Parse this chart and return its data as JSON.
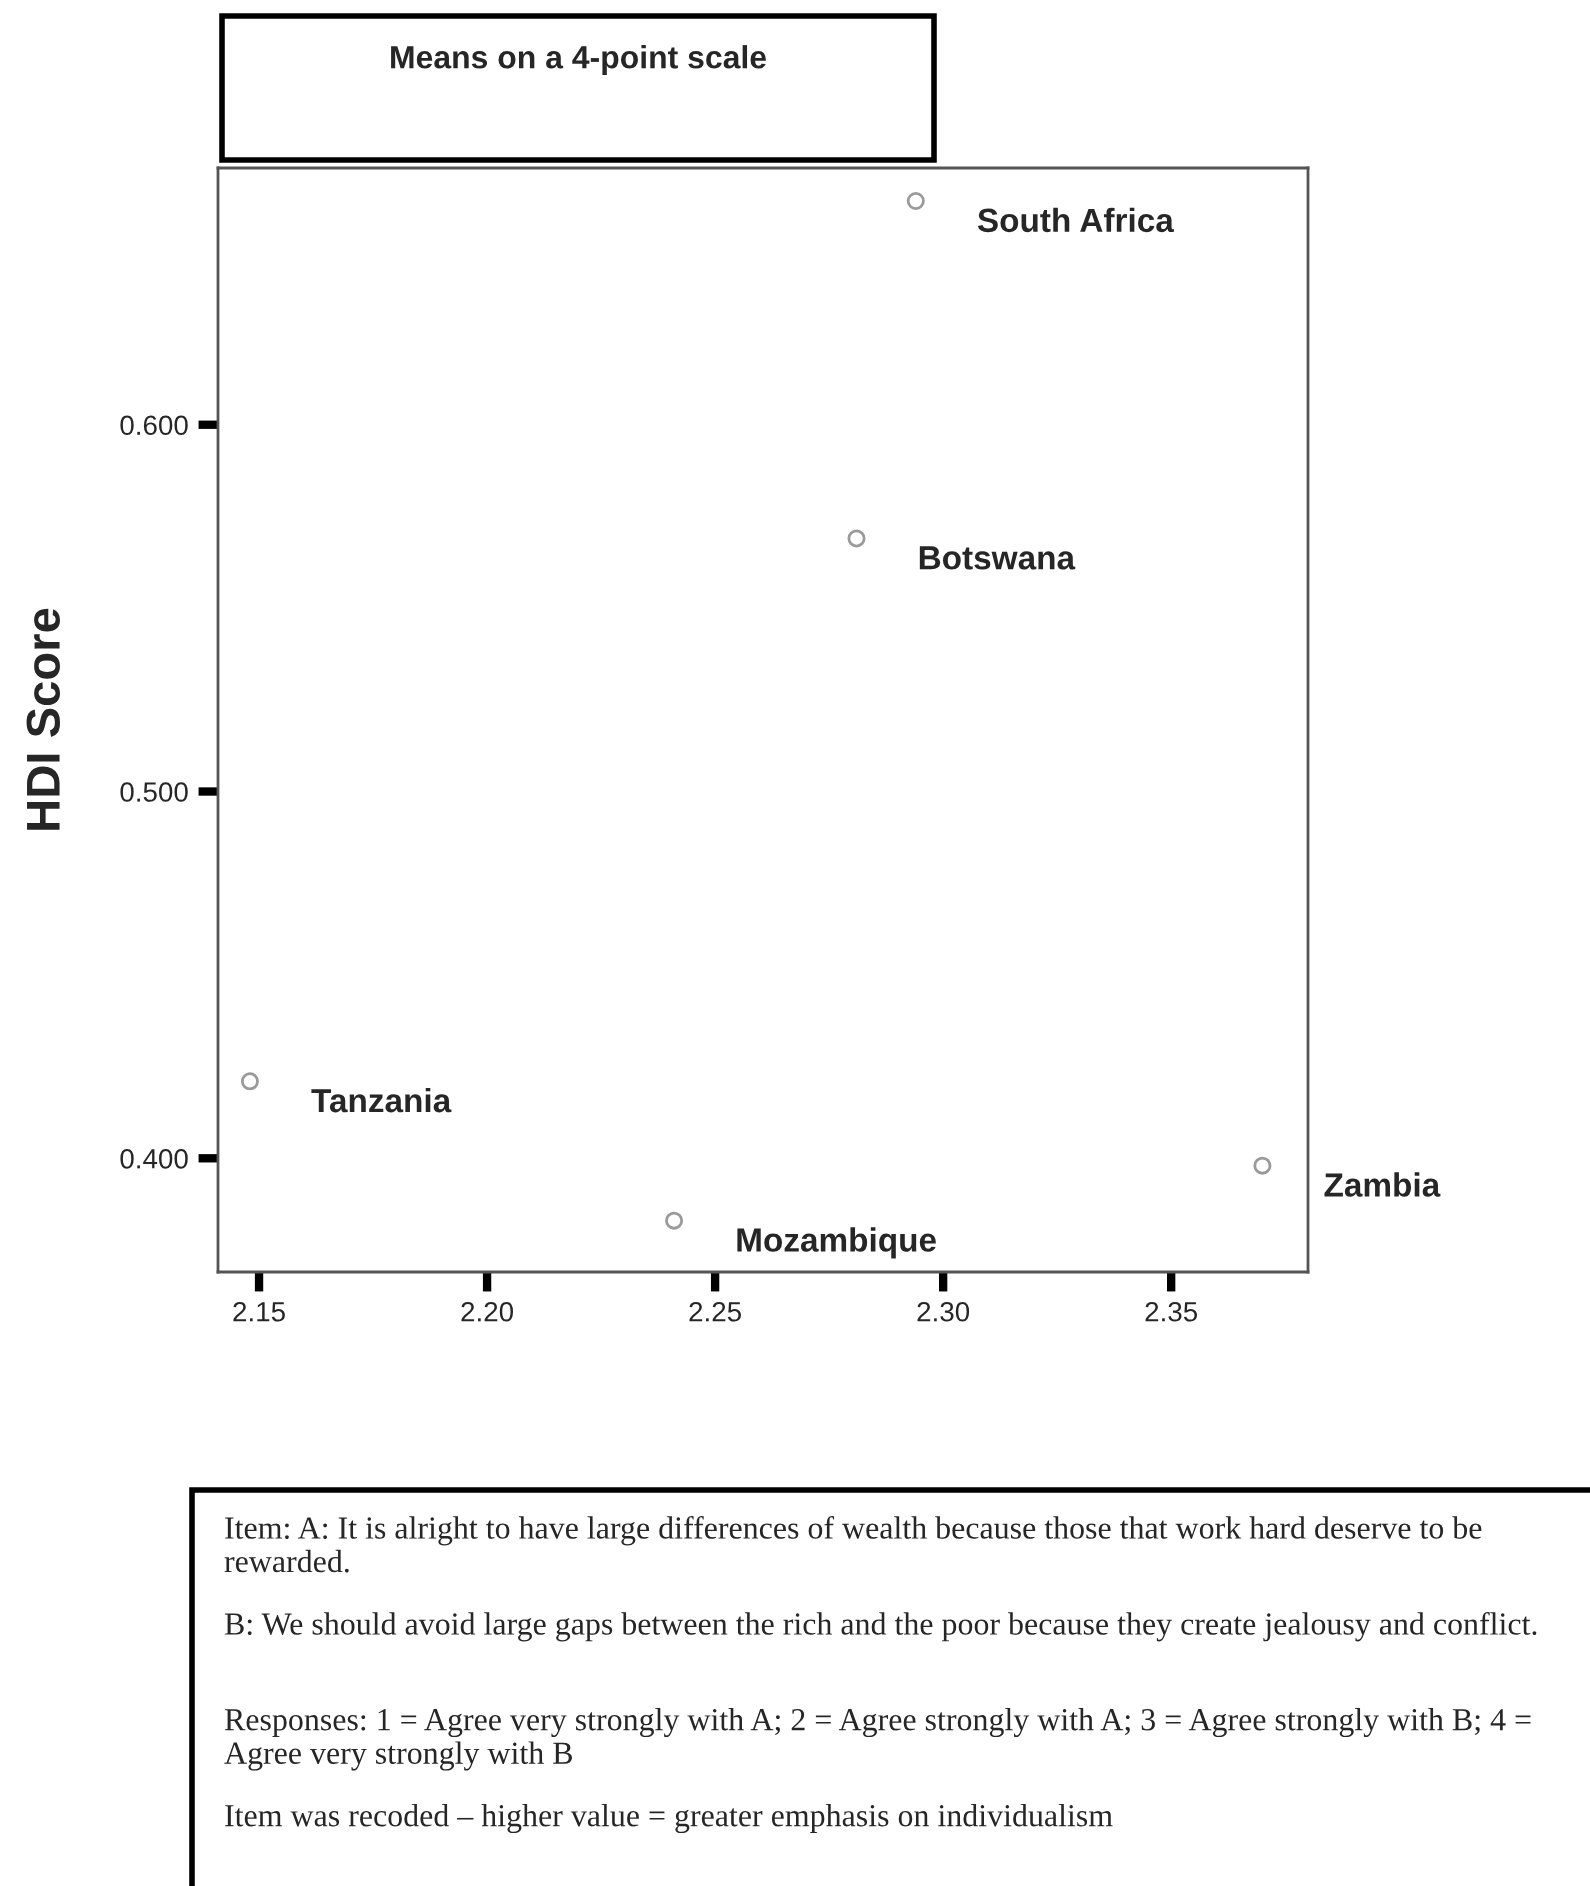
{
  "chart_data": {
    "type": "scatter",
    "title": "Means on a 4-point scale",
    "ylabel": "HDI Score",
    "series": [
      {
        "color": "#9a9a9a",
        "x": [
          2.294,
          2.281,
          2.148,
          2.241,
          2.37
        ],
        "values": [
          0.661,
          0.569,
          0.421,
          0.383,
          0.398
        ]
      }
    ],
    "marker": "circle",
    "legend": false,
    "grid": false,
    "xlim": [
      2.141,
      2.38
    ],
    "xticks": [
      {
        "value": 2.15,
        "label": "2.15"
      },
      {
        "value": 2.2,
        "label": "2.20"
      },
      {
        "value": 2.25,
        "label": "2.25"
      },
      {
        "value": 2.3,
        "label": "2.30"
      },
      {
        "value": 2.35,
        "label": "2.35"
      }
    ],
    "ylim": [
      0.369,
      0.67
    ],
    "yticks": [
      {
        "value": 0.4,
        "label": "0.400"
      },
      {
        "value": 0.5,
        "label": "0.500"
      },
      {
        "value": 0.6,
        "label": "0.600"
      }
    ],
    "annotations": [
      {
        "text": "South Africa",
        "x": 2.294,
        "y": 0.661
      },
      {
        "text": "Botswana",
        "x": 2.281,
        "y": 0.569
      },
      {
        "text": "Tanzania",
        "x": 2.148,
        "y": 0.421
      },
      {
        "text": "Mozambique",
        "x": 2.241,
        "y": 0.383
      },
      {
        "text": "Zambia",
        "x": 2.37,
        "y": 0.398
      },
      "Item: A: It is alright to have large differences of wealth because those that work hard deserve to be rewarded.",
      "B: We should avoid large gaps between the rich and the poor because they create jealousy and conflict.",
      "Responses: 1 = Agree very strongly with A; 2 = Agree strongly with A; 3 = Agree strongly with B; 4 = Agree very strongly with B",
      "Item was recoded – higher value = greater emphasis on individualism"
    ]
  }
}
